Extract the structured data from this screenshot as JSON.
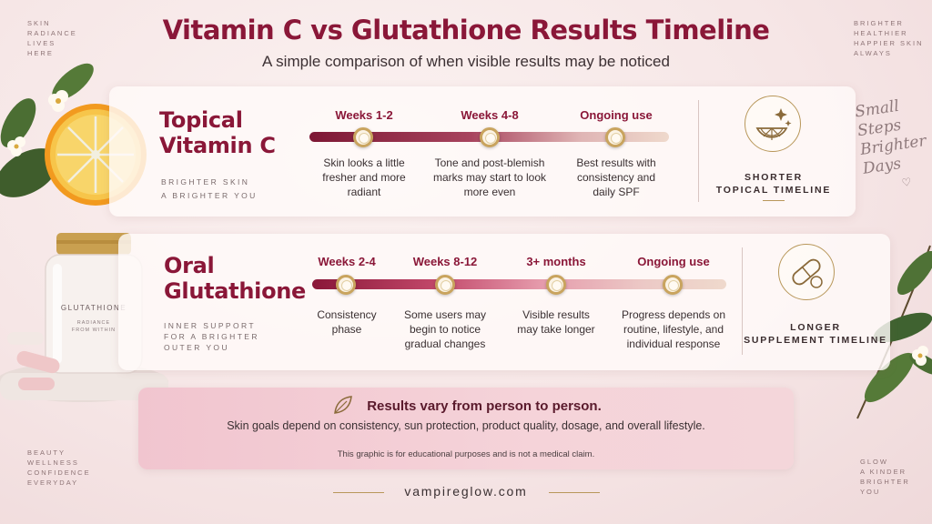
{
  "title": "Vitamin C vs Glutathione Results Timeline",
  "subtitle": "A simple comparison of when visible results may be noticed",
  "corner_text": {
    "top_left": [
      "SKIN",
      "RADIANCE",
      "LIVES",
      "HERE"
    ],
    "top_right": [
      "BRIGHTER",
      "HEALTHIER",
      "HAPPIER SKIN",
      "ALWAYS"
    ],
    "bottom_left": [
      "BEAUTY",
      "WELLNESS",
      "CONFIDENCE",
      "EVERYDAY"
    ],
    "bottom_right": [
      "GLOW",
      "A KINDER",
      "BRIGHTER",
      "YOU"
    ]
  },
  "script_text": [
    "Small",
    "Steps",
    "Brighter",
    "Days"
  ],
  "vitamin_c": {
    "title_line1": "Topical",
    "title_line2": "Vitamin C",
    "tagline_line1": "BRIGHTER SKIN",
    "tagline_line2": "A BRIGHTER YOU",
    "stages": [
      {
        "label": "Weeks 1-2",
        "desc": [
          "Skin looks a little",
          "fresher and more",
          "radiant"
        ]
      },
      {
        "label": "Weeks 4-8",
        "desc": [
          "Tone and post-blemish",
          "marks may start to look",
          "more even"
        ]
      },
      {
        "label": "Ongoing use",
        "desc": [
          "Best results with",
          "consistency and",
          "daily SPF"
        ]
      }
    ],
    "badge_line1": "SHORTER",
    "badge_line2": "TOPICAL TIMELINE",
    "icon": "citrus-slice-icon"
  },
  "glutathione": {
    "title_line1": "Oral",
    "title_line2": "Glutathione",
    "tagline_line1": "INNER SUPPORT",
    "tagline_line2": "FOR A BRIGHTER",
    "tagline_line3": "OUTER YOU",
    "stages": [
      {
        "label": "Weeks 2-4",
        "desc": [
          "Consistency",
          "phase"
        ]
      },
      {
        "label": "Weeks 8-12",
        "desc": [
          "Some users may",
          "begin to notice",
          "gradual changes"
        ]
      },
      {
        "label": "3+ months",
        "desc": [
          "Visible results",
          "may take longer"
        ]
      },
      {
        "label": "Ongoing use",
        "desc": [
          "Progress depends on",
          "routine, lifestyle, and",
          "individual response"
        ]
      }
    ],
    "badge_line1": "LONGER",
    "badge_line2": "SUPPLEMENT TIMELINE",
    "icon": "capsule-icon"
  },
  "product_jar": {
    "name": "GLUTATHIONE",
    "line1": "RADIANCE",
    "line2": "FROM WITHIN"
  },
  "notice": {
    "headline": "Results vary from person to person.",
    "body": "Skin goals depend on consistency, sun protection, product quality, dosage, and overall lifestyle.",
    "disclaimer": "This graphic is for educational purposes and is not a medical claim.",
    "icon": "leaf-icon"
  },
  "website": "vampireglow.com",
  "colors": {
    "brand_crimson": "#8a1738",
    "gold": "#c9a45e",
    "notice_pink": "#f3ccd4"
  }
}
